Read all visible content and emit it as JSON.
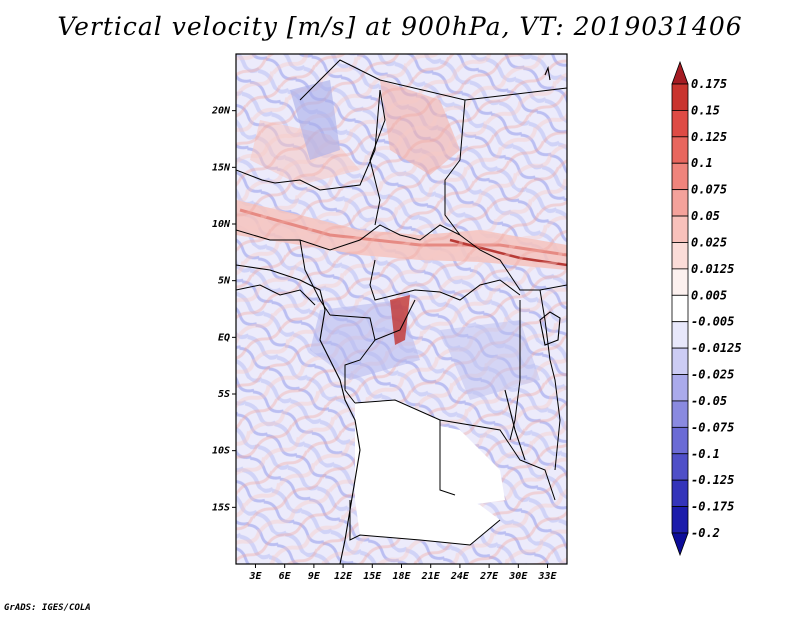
{
  "title": "Vertical velocity [m/s] at 900hPa, VT: 2019031406",
  "footer": "GrADS: IGES/COLA",
  "map": {
    "lat_labels": [
      "20N",
      "15N",
      "10N",
      "5N",
      "EQ",
      "5S",
      "10S",
      "15S"
    ],
    "lon_labels": [
      "3E",
      "6E",
      "9E",
      "12E",
      "15E",
      "18E",
      "21E",
      "24E",
      "27E",
      "30E",
      "33E"
    ],
    "lat_values": [
      20,
      15,
      10,
      5,
      0,
      -5,
      -10,
      -15
    ],
    "lon_values": [
      3,
      6,
      9,
      12,
      15,
      18,
      21,
      24,
      27,
      30,
      33
    ],
    "lat_range": [
      -20,
      25
    ],
    "lon_range": [
      1,
      35
    ]
  },
  "colorbar": {
    "labels": [
      "0.175",
      "0.15",
      "0.125",
      "0.1",
      "0.075",
      "0.05",
      "0.025",
      "0.0125",
      "0.005",
      "-0.005",
      "-0.0125",
      "-0.025",
      "-0.05",
      "-0.075",
      "-0.1",
      "-0.125",
      "-0.175",
      "-0.2"
    ],
    "colors": [
      "#a51c23",
      "#c9342e",
      "#de4b45",
      "#e8665e",
      "#ef847c",
      "#f4a29b",
      "#f8c1bb",
      "#fbdcd8",
      "#fdf1ef",
      "#ffffff",
      "#e8e8fb",
      "#ccccf4",
      "#aaaaeb",
      "#8a8ae0",
      "#6b6bd5",
      "#4f4fc8",
      "#3434ba",
      "#1c1cab",
      "#0c0c99"
    ]
  }
}
